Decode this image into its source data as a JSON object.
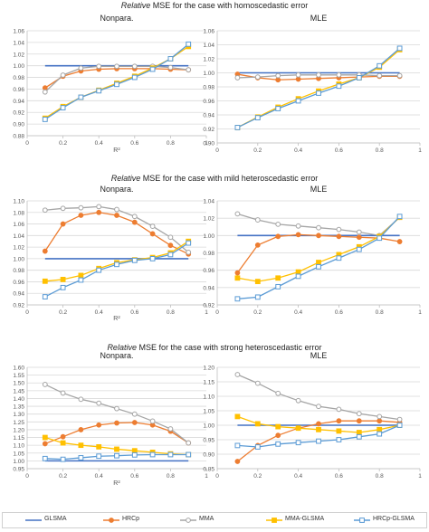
{
  "figure": {
    "titles": [
      {
        "prefix": "Relative",
        "rest": " MSE for the case with homoscedastic error"
      },
      {
        "prefix": "Relative",
        "rest": " MSE for the case with mild heteroscedastic error"
      },
      {
        "prefix": "Relative",
        "rest": " MSE for the case with strong heteroscedastic error"
      }
    ],
    "legend": [
      {
        "name": "GLSMA",
        "color": "#4472C4",
        "marker": "none"
      },
      {
        "name": "HRCp",
        "color": "#ED7D31",
        "marker": "circle"
      },
      {
        "name": "MMA",
        "color": "#A5A5A5",
        "marker": "circle-open"
      },
      {
        "name": "MMA-GLSMA",
        "color": "#FFC000",
        "marker": "square"
      },
      {
        "name": "HRCp-GLSMA",
        "color": "#5B9BD5",
        "marker": "square-open"
      }
    ]
  },
  "chart_data": [
    {
      "type": "line",
      "title": "Nonpara.",
      "xlabel": "R²",
      "ylabel": "",
      "xlim": [
        0,
        1
      ],
      "ylim": [
        0.88,
        1.06
      ],
      "xticks": [
        "0",
        "0.2",
        "0.4",
        "0.6",
        "0.8",
        "1"
      ],
      "yticks": [
        "0.88",
        "0.90",
        "0.92",
        "0.94",
        "0.96",
        "0.98",
        "1.00",
        "1.02",
        "1.04",
        "1.06"
      ],
      "x": [
        0.1,
        0.2,
        0.3,
        0.4,
        0.5,
        0.6,
        0.7,
        0.8,
        0.9
      ],
      "series": [
        {
          "name": "GLSMA",
          "values": [
            1.0,
            1.0,
            1.0,
            1.0,
            1.0,
            1.0,
            1.0,
            1.0,
            1.0
          ]
        },
        {
          "name": "HRCp",
          "values": [
            0.962,
            0.982,
            0.991,
            0.994,
            0.995,
            0.995,
            0.995,
            0.994,
            0.993
          ]
        },
        {
          "name": "MMA",
          "values": [
            0.955,
            0.984,
            0.996,
            0.999,
            0.999,
            0.999,
            0.999,
            0.997,
            0.993
          ]
        },
        {
          "name": "MMA-GLSMA",
          "values": [
            0.91,
            0.93,
            0.946,
            0.958,
            0.97,
            0.982,
            0.996,
            1.012,
            1.033
          ]
        },
        {
          "name": "HRCp-GLSMA",
          "values": [
            0.908,
            0.928,
            0.946,
            0.957,
            0.968,
            0.98,
            0.994,
            1.012,
            1.037
          ]
        }
      ]
    },
    {
      "type": "line",
      "title": "MLE",
      "xlabel": "",
      "ylabel": "",
      "xlim": [
        0,
        1
      ],
      "ylim": [
        0.9,
        1.06
      ],
      "xticks": [
        "0",
        "0.2",
        "0.4",
        "0.6",
        "0.8",
        "1"
      ],
      "yticks": [
        "0.90",
        "0.92",
        "0.94",
        "0.96",
        "0.98",
        "1.00",
        "1.02",
        "1.04",
        "1.06"
      ],
      "x": [
        0.1,
        0.2,
        0.3,
        0.4,
        0.5,
        0.6,
        0.7,
        0.8,
        0.9
      ],
      "series": [
        {
          "name": "GLSMA",
          "values": [
            1.0,
            1.0,
            1.0,
            1.0,
            1.0,
            1.0,
            1.0,
            1.0,
            1.0
          ]
        },
        {
          "name": "HRCp",
          "values": [
            0.998,
            0.993,
            0.99,
            0.991,
            0.992,
            0.993,
            0.994,
            0.995,
            0.995
          ]
        },
        {
          "name": "MMA",
          "values": [
            0.993,
            0.994,
            0.996,
            0.997,
            0.997,
            0.997,
            0.997,
            0.996,
            0.996
          ]
        },
        {
          "name": "MMA-GLSMA",
          "values": [
            0.922,
            0.937,
            0.951,
            0.963,
            0.974,
            0.984,
            0.993,
            1.008,
            1.033
          ]
        },
        {
          "name": "HRCp-GLSMA",
          "values": [
            0.922,
            0.936,
            0.949,
            0.96,
            0.971,
            0.981,
            0.993,
            1.01,
            1.035
          ]
        }
      ]
    },
    {
      "type": "line",
      "title": "Nonpara.",
      "xlabel": "R²",
      "ylabel": "",
      "xlim": [
        0,
        1
      ],
      "ylim": [
        0.92,
        1.1
      ],
      "xticks": [
        "0",
        "0.2",
        "0.4",
        "0.6",
        "0.8",
        "1"
      ],
      "yticks": [
        "0.92",
        "0.94",
        "0.96",
        "0.98",
        "1.00",
        "1.02",
        "1.04",
        "1.06",
        "1.08",
        "1.10"
      ],
      "x": [
        0.1,
        0.2,
        0.3,
        0.4,
        0.5,
        0.6,
        0.7,
        0.8,
        0.9
      ],
      "series": [
        {
          "name": "GLSMA",
          "values": [
            1.0,
            1.0,
            1.0,
            1.0,
            1.0,
            1.0,
            1.0,
            1.0,
            1.0
          ]
        },
        {
          "name": "HRCp",
          "values": [
            1.013,
            1.06,
            1.075,
            1.08,
            1.075,
            1.063,
            1.043,
            1.023,
            1.008
          ]
        },
        {
          "name": "MMA",
          "values": [
            1.084,
            1.087,
            1.088,
            1.09,
            1.085,
            1.073,
            1.056,
            1.037,
            1.011
          ]
        },
        {
          "name": "MMA-GLSMA",
          "values": [
            0.961,
            0.964,
            0.971,
            0.983,
            0.993,
            0.998,
            1.002,
            1.01,
            1.03
          ]
        },
        {
          "name": "HRCp-GLSMA",
          "values": [
            0.934,
            0.95,
            0.963,
            0.98,
            0.99,
            0.997,
            1.0,
            1.007,
            1.027
          ]
        }
      ]
    },
    {
      "type": "line",
      "title": "MLE",
      "xlabel": "",
      "ylabel": "",
      "xlim": [
        0,
        1
      ],
      "ylim": [
        0.92,
        1.04
      ],
      "xticks": [
        "0",
        "0.2",
        "0.4",
        "0.6",
        "0.8",
        "1"
      ],
      "yticks": [
        "0.92",
        "0.94",
        "0.96",
        "0.98",
        "1.00",
        "1.02",
        "1.04"
      ],
      "x": [
        0.1,
        0.2,
        0.3,
        0.4,
        0.5,
        0.6,
        0.7,
        0.8,
        0.9
      ],
      "series": [
        {
          "name": "GLSMA",
          "values": [
            1.0,
            1.0,
            1.0,
            1.0,
            1.0,
            1.0,
            1.0,
            1.0,
            1.0
          ]
        },
        {
          "name": "HRCp",
          "values": [
            0.957,
            0.989,
            0.999,
            1.001,
            1.0,
            0.999,
            0.998,
            0.997,
            0.993
          ]
        },
        {
          "name": "MMA",
          "values": [
            1.025,
            1.018,
            1.013,
            1.011,
            1.009,
            1.007,
            1.004,
            1.0,
            1.021
          ]
        },
        {
          "name": "MMA-GLSMA",
          "values": [
            0.951,
            0.947,
            0.951,
            0.958,
            0.969,
            0.978,
            0.987,
            0.999,
            1.021
          ]
        },
        {
          "name": "HRCp-GLSMA",
          "values": [
            0.927,
            0.929,
            0.941,
            0.953,
            0.964,
            0.974,
            0.984,
            0.997,
            1.022
          ]
        }
      ]
    },
    {
      "type": "line",
      "title": "Nonpara.",
      "xlabel": "R²",
      "ylabel": "",
      "xlim": [
        0,
        1
      ],
      "ylim": [
        0.95,
        1.6
      ],
      "xticks": [
        "0",
        "0.2",
        "0.4",
        "0.6",
        "0.8",
        "1"
      ],
      "yticks": [
        "0.95",
        "1.00",
        "1.05",
        "1.10",
        "1.15",
        "1.20",
        "1.25",
        "1.30",
        "1.35",
        "1.40",
        "1.45",
        "1.50",
        "1.55",
        "1.60"
      ],
      "x": [
        0.1,
        0.2,
        0.3,
        0.4,
        0.5,
        0.6,
        0.7,
        0.8,
        0.9
      ],
      "series": [
        {
          "name": "GLSMA",
          "values": [
            1.0,
            1.0,
            1.0,
            1.0,
            1.0,
            1.0,
            1.0,
            1.0,
            1.0
          ]
        },
        {
          "name": "HRCp",
          "values": [
            1.11,
            1.155,
            1.2,
            1.23,
            1.243,
            1.246,
            1.23,
            1.19,
            1.115
          ]
        },
        {
          "name": "MMA",
          "values": [
            1.49,
            1.435,
            1.395,
            1.37,
            1.335,
            1.3,
            1.255,
            1.205,
            1.115
          ]
        },
        {
          "name": "MMA-GLSMA",
          "values": [
            1.15,
            1.115,
            1.1,
            1.09,
            1.075,
            1.065,
            1.055,
            1.045,
            1.04
          ]
        },
        {
          "name": "HRCp-GLSMA",
          "values": [
            1.015,
            1.01,
            1.02,
            1.03,
            1.033,
            1.038,
            1.04,
            1.04,
            1.04
          ]
        }
      ]
    },
    {
      "type": "line",
      "title": "MLE",
      "xlabel": "",
      "ylabel": "",
      "xlim": [
        0,
        1
      ],
      "ylim": [
        0.85,
        1.2
      ],
      "xticks": [
        "0",
        "0.2",
        "0.4",
        "0.6",
        "0.8",
        "1"
      ],
      "yticks": [
        "0.85",
        "0.90",
        "0.95",
        "1.00",
        "1.05",
        "1.10",
        "1.15",
        "1.20"
      ],
      "x": [
        0.1,
        0.2,
        0.3,
        0.4,
        0.5,
        0.6,
        0.7,
        0.8,
        0.9
      ],
      "series": [
        {
          "name": "GLSMA",
          "values": [
            1.0,
            1.0,
            1.0,
            1.0,
            1.0,
            1.0,
            1.0,
            1.0,
            1.0
          ]
        },
        {
          "name": "HRCp",
          "values": [
            0.875,
            0.93,
            0.965,
            0.99,
            1.005,
            1.015,
            1.015,
            1.015,
            1.01
          ]
        },
        {
          "name": "MMA",
          "values": [
            1.175,
            1.145,
            1.11,
            1.085,
            1.065,
            1.055,
            1.04,
            1.03,
            1.02
          ]
        },
        {
          "name": "MMA-GLSMA",
          "values": [
            1.03,
            1.005,
            0.995,
            0.99,
            0.985,
            0.98,
            0.975,
            0.985,
            1.0
          ]
        },
        {
          "name": "HRCp-GLSMA",
          "values": [
            0.93,
            0.925,
            0.935,
            0.94,
            0.945,
            0.95,
            0.96,
            0.97,
            1.0
          ]
        }
      ]
    }
  ]
}
